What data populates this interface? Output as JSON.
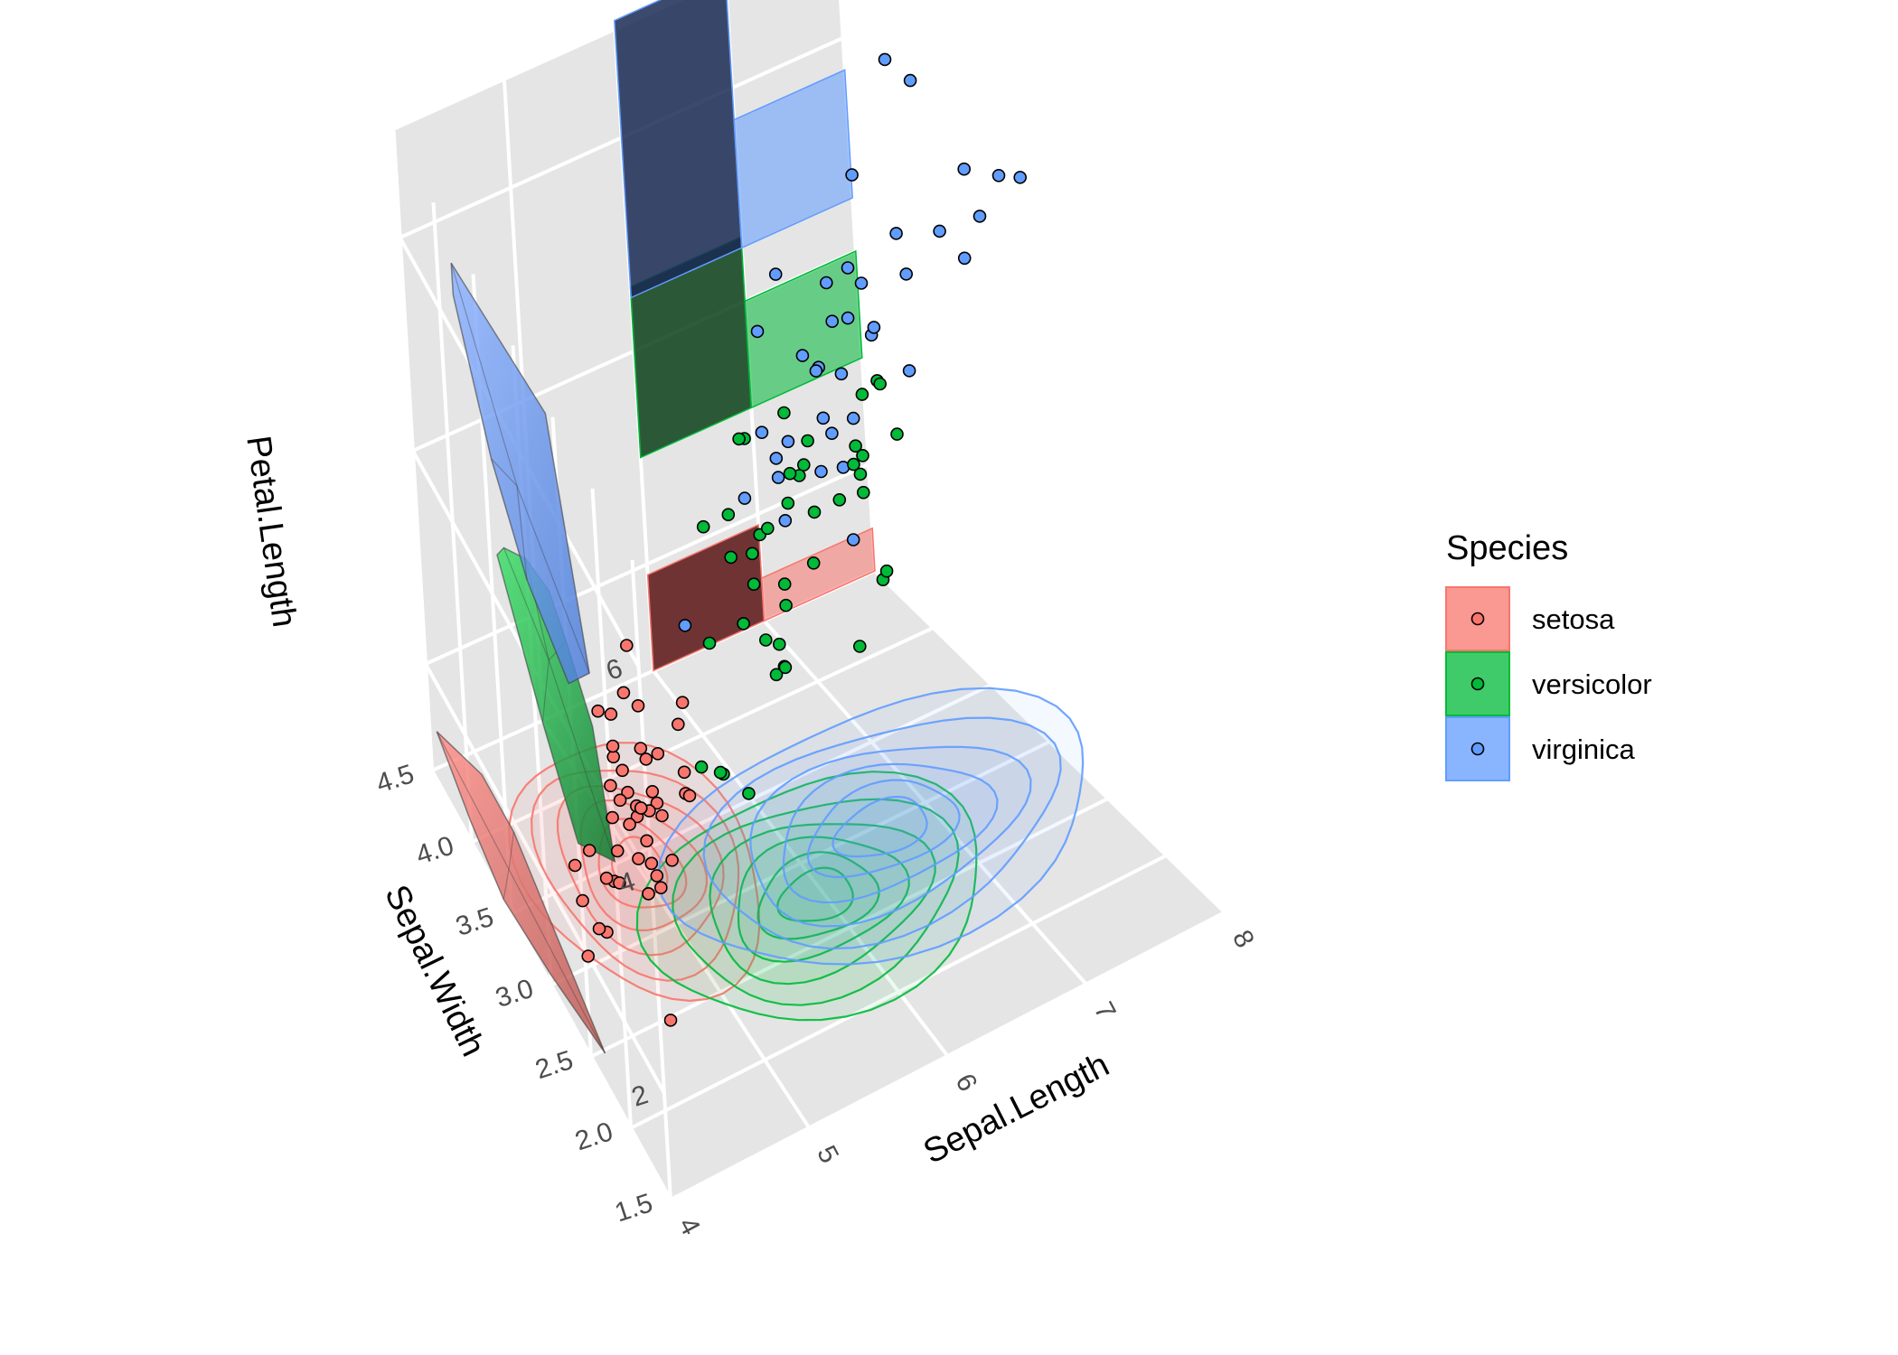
{
  "chart_data": {
    "type": "scatter",
    "projection": "3d",
    "axes": {
      "x": {
        "label": "Sepal.Length",
        "ticks": [
          "4",
          "5",
          "6",
          "7",
          "8"
        ],
        "range": [
          4,
          8
        ]
      },
      "y": {
        "label": "Sepal.Width",
        "ticks": [
          "1.5",
          "2.0",
          "2.5",
          "3.0",
          "3.5",
          "4.0",
          "4.5"
        ],
        "range": [
          1.5,
          4.5
        ]
      },
      "z": {
        "label": "Petal.Length",
        "ticks": [
          "2",
          "4",
          "6"
        ],
        "range": [
          1,
          7
        ]
      }
    },
    "grid": true,
    "legend": {
      "title": "Species",
      "position": "right",
      "items": [
        {
          "label": "setosa",
          "color": "#F8766D"
        },
        {
          "label": "versicolor",
          "color": "#00BA38"
        },
        {
          "label": "virginica",
          "color": "#619CFF"
        }
      ]
    },
    "layers": [
      "points",
      "density-contours-on-floor",
      "hull-projection-on-back-wall",
      "histogram-on-side-wall"
    ],
    "series": [
      {
        "name": "setosa",
        "color": "#F8766D",
        "points": [
          [
            5.1,
            3.5,
            1.4
          ],
          [
            4.9,
            3.0,
            1.4
          ],
          [
            4.7,
            3.2,
            1.3
          ],
          [
            4.6,
            3.1,
            1.5
          ],
          [
            5.0,
            3.6,
            1.4
          ],
          [
            5.4,
            3.9,
            1.7
          ],
          [
            4.6,
            3.4,
            1.4
          ],
          [
            5.0,
            3.4,
            1.5
          ],
          [
            4.4,
            2.9,
            1.4
          ],
          [
            4.9,
            3.1,
            1.5
          ],
          [
            5.4,
            3.7,
            1.5
          ],
          [
            4.8,
            3.4,
            1.6
          ],
          [
            4.8,
            3.0,
            1.4
          ],
          [
            4.3,
            3.0,
            1.1
          ],
          [
            5.8,
            4.0,
            1.2
          ],
          [
            5.7,
            4.4,
            1.5
          ],
          [
            5.4,
            3.9,
            1.3
          ],
          [
            5.1,
            3.5,
            1.4
          ],
          [
            5.7,
            3.8,
            1.7
          ],
          [
            5.1,
            3.8,
            1.5
          ],
          [
            5.4,
            3.4,
            1.7
          ],
          [
            5.1,
            3.7,
            1.5
          ],
          [
            4.6,
            3.6,
            1.0
          ],
          [
            5.1,
            3.3,
            1.7
          ],
          [
            4.8,
            3.4,
            1.9
          ],
          [
            5.0,
            3.0,
            1.6
          ],
          [
            5.0,
            3.4,
            1.6
          ],
          [
            5.2,
            3.5,
            1.5
          ],
          [
            5.2,
            3.4,
            1.4
          ],
          [
            4.7,
            3.2,
            1.6
          ],
          [
            4.8,
            3.1,
            1.6
          ],
          [
            5.4,
            3.4,
            1.5
          ],
          [
            5.2,
            4.1,
            1.5
          ],
          [
            5.5,
            4.2,
            1.4
          ],
          [
            4.9,
            3.1,
            1.5
          ],
          [
            5.0,
            3.2,
            1.2
          ],
          [
            5.5,
            3.5,
            1.3
          ],
          [
            4.4,
            3.0,
            1.3
          ],
          [
            5.1,
            3.4,
            1.5
          ],
          [
            5.0,
            3.5,
            1.3
          ],
          [
            4.5,
            2.3,
            1.3
          ],
          [
            4.4,
            3.2,
            1.3
          ],
          [
            5.0,
            3.5,
            1.6
          ],
          [
            5.1,
            3.8,
            1.9
          ],
          [
            4.8,
            3.0,
            1.4
          ],
          [
            5.1,
            3.8,
            1.6
          ],
          [
            4.6,
            3.2,
            1.4
          ],
          [
            5.3,
            3.7,
            1.5
          ],
          [
            5.0,
            3.3,
            1.4
          ]
        ]
      },
      {
        "name": "versicolor",
        "color": "#00BA38",
        "points": [
          [
            7.0,
            3.2,
            4.7
          ],
          [
            6.4,
            3.2,
            4.5
          ],
          [
            6.9,
            3.1,
            4.9
          ],
          [
            5.5,
            2.3,
            4.0
          ],
          [
            6.5,
            2.8,
            4.6
          ],
          [
            5.7,
            2.8,
            4.5
          ],
          [
            6.3,
            3.3,
            4.7
          ],
          [
            4.9,
            2.4,
            3.3
          ],
          [
            6.6,
            2.9,
            4.6
          ],
          [
            5.2,
            2.7,
            3.9
          ],
          [
            5.0,
            2.0,
            3.5
          ],
          [
            5.9,
            3.0,
            4.2
          ],
          [
            6.0,
            2.2,
            4.0
          ],
          [
            6.1,
            2.9,
            4.7
          ],
          [
            5.6,
            2.9,
            3.6
          ],
          [
            6.7,
            3.1,
            4.4
          ],
          [
            5.6,
            3.0,
            4.5
          ],
          [
            5.8,
            2.7,
            4.1
          ],
          [
            6.2,
            2.2,
            4.5
          ],
          [
            5.6,
            2.5,
            3.9
          ],
          [
            5.9,
            3.2,
            4.8
          ],
          [
            6.1,
            2.8,
            4.0
          ],
          [
            6.3,
            2.5,
            4.9
          ],
          [
            6.4,
            2.9,
            4.3
          ],
          [
            6.6,
            3.0,
            4.4
          ],
          [
            6.8,
            2.8,
            4.8
          ],
          [
            6.7,
            3.0,
            5.0
          ],
          [
            6.0,
            2.9,
            4.5
          ],
          [
            5.7,
            2.6,
            3.5
          ],
          [
            5.5,
            2.4,
            3.8
          ],
          [
            5.8,
            2.7,
            3.9
          ],
          [
            6.0,
            2.7,
            5.1
          ],
          [
            5.4,
            3.0,
            4.5
          ],
          [
            6.0,
            3.4,
            4.5
          ],
          [
            6.3,
            2.3,
            4.4
          ],
          [
            5.6,
            3.0,
            4.1
          ],
          [
            5.5,
            2.5,
            4.0
          ],
          [
            5.5,
            2.6,
            4.4
          ],
          [
            6.1,
            3.0,
            4.6
          ],
          [
            5.0,
            2.3,
            3.3
          ],
          [
            5.7,
            2.9,
            4.2
          ],
          [
            6.2,
            2.9,
            4.3
          ],
          [
            5.1,
            2.5,
            3.0
          ]
        ]
      },
      {
        "name": "virginica",
        "color": "#619CFF",
        "points": [
          [
            6.3,
            3.3,
            6.0
          ],
          [
            5.8,
            2.7,
            5.1
          ],
          [
            7.1,
            3.0,
            5.9
          ],
          [
            6.3,
            2.9,
            5.6
          ],
          [
            6.5,
            3.0,
            5.8
          ],
          [
            7.6,
            3.0,
            6.6
          ],
          [
            4.9,
            2.5,
            4.5
          ],
          [
            7.3,
            2.9,
            6.3
          ],
          [
            6.7,
            2.5,
            5.8
          ],
          [
            7.2,
            3.6,
            6.1
          ],
          [
            6.5,
            3.2,
            5.1
          ],
          [
            6.4,
            2.7,
            5.3
          ],
          [
            6.8,
            3.0,
            5.5
          ],
          [
            5.7,
            2.5,
            5.0
          ],
          [
            6.4,
            3.2,
            5.3
          ],
          [
            7.7,
            3.8,
            6.7
          ],
          [
            7.7,
            2.6,
            6.9
          ],
          [
            6.0,
            2.2,
            5.0
          ],
          [
            6.9,
            3.2,
            5.7
          ],
          [
            5.6,
            2.8,
            4.9
          ],
          [
            7.7,
            2.8,
            6.7
          ],
          [
            6.3,
            2.7,
            4.9
          ],
          [
            6.7,
            3.3,
            5.7
          ],
          [
            7.2,
            3.2,
            6.0
          ],
          [
            6.2,
            2.8,
            4.8
          ],
          [
            6.1,
            3.0,
            4.9
          ],
          [
            6.4,
            2.8,
            5.6
          ],
          [
            7.4,
            2.8,
            6.1
          ],
          [
            7.9,
            3.8,
            6.4
          ],
          [
            6.3,
            2.8,
            5.1
          ],
          [
            6.1,
            2.6,
            5.6
          ],
          [
            7.7,
            3.0,
            6.1
          ],
          [
            6.0,
            3.0,
            4.8
          ],
          [
            6.9,
            3.1,
            5.4
          ],
          [
            6.7,
            3.1,
            5.6
          ],
          [
            6.8,
            3.2,
            5.9
          ],
          [
            6.2,
            3.4,
            5.4
          ],
          [
            5.9,
            3.0,
            5.1
          ]
        ]
      }
    ],
    "side_histogram": {
      "x_bins": [
        [
          6.0,
          7.0
        ],
        [
          7.0,
          8.0
        ]
      ],
      "bars": [
        {
          "species": "setosa",
          "z_from": 1.0,
          "heights": [
            0.9,
            0.4
          ]
        },
        {
          "species": "versicolor",
          "z_from": 3.0,
          "heights": [
            1.6,
            1.0
          ]
        },
        {
          "species": "virginica",
          "z_from": 4.5,
          "heights": [
            2.6,
            1.2
          ]
        }
      ]
    }
  }
}
